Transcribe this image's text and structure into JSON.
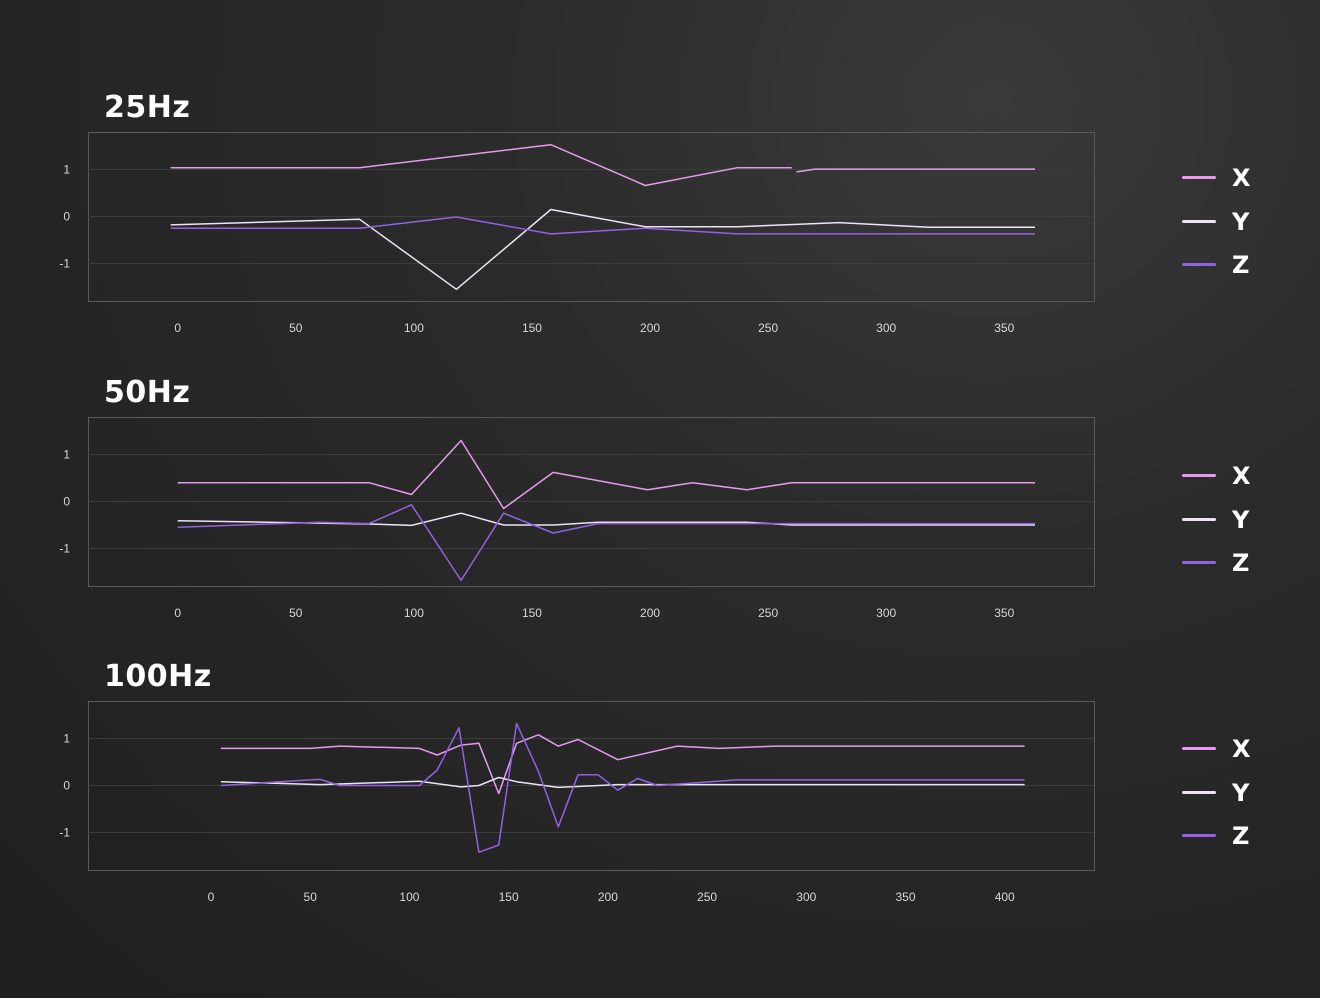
{
  "colors": {
    "X": "#e79af0",
    "Y": "#ece4f4",
    "Z": "#9461e2",
    "grid": "#3d3d3d",
    "frame": "#5a5a5a"
  },
  "legend": [
    {
      "label": "X",
      "color": "#e79af0"
    },
    {
      "label": "Y",
      "color": "#ece4f4"
    },
    {
      "label": "Z",
      "color": "#9461e2"
    }
  ],
  "chart_data": [
    {
      "type": "line",
      "title": "25Hz",
      "xlim": [
        -38,
        388
      ],
      "ylim": [
        -1.8,
        1.8
      ],
      "xticks": [
        0,
        50,
        100,
        150,
        200,
        250,
        300,
        350
      ],
      "yticks": [
        1,
        0,
        -1
      ],
      "grid": true,
      "legend_position": "right",
      "series": [
        {
          "name": "X",
          "color": "#e79af0",
          "segments": [
            [
              [
                -3,
                1.04
              ],
              [
                77,
                1.04
              ],
              [
                158,
                1.53
              ],
              [
                198,
                0.66
              ],
              [
                237,
                1.04
              ],
              [
                260,
                1.04
              ]
            ],
            [
              [
                262,
                0.95
              ],
              [
                270,
                1.01
              ],
              [
                363,
                1.01
              ]
            ]
          ]
        },
        {
          "name": "Y",
          "color": "#ece4f4",
          "segments": [
            [
              [
                -3,
                -0.18
              ],
              [
                77,
                -0.06
              ],
              [
                118,
                -1.55
              ],
              [
                158,
                0.15
              ],
              [
                198,
                -0.22
              ],
              [
                237,
                -0.22
              ],
              [
                280,
                -0.13
              ],
              [
                318,
                -0.23
              ],
              [
                363,
                -0.23
              ]
            ]
          ]
        },
        {
          "name": "Z",
          "color": "#9461e2",
          "segments": [
            [
              [
                -3,
                -0.25
              ],
              [
                77,
                -0.25
              ],
              [
                118,
                -0.01
              ],
              [
                158,
                -0.37
              ],
              [
                198,
                -0.25
              ],
              [
                237,
                -0.37
              ],
              [
                363,
                -0.37
              ]
            ]
          ]
        }
      ]
    },
    {
      "type": "line",
      "title": "50Hz",
      "xlim": [
        -38,
        388
      ],
      "ylim": [
        -1.8,
        1.8
      ],
      "xticks": [
        0,
        50,
        100,
        150,
        200,
        250,
        300,
        350
      ],
      "yticks": [
        1,
        0,
        -1
      ],
      "grid": true,
      "legend_position": "right",
      "series": [
        {
          "name": "X",
          "color": "#e79af0",
          "segments": [
            [
              [
                0,
                0.4
              ],
              [
                81,
                0.4
              ],
              [
                99,
                0.15
              ],
              [
                120,
                1.3
              ],
              [
                138,
                -0.15
              ],
              [
                159,
                0.62
              ],
              [
                199,
                0.25
              ],
              [
                218,
                0.4
              ],
              [
                241,
                0.25
              ],
              [
                260,
                0.4
              ],
              [
                363,
                0.4
              ]
            ]
          ]
        },
        {
          "name": "Y",
          "color": "#ece4f4",
          "segments": [
            [
              [
                0,
                -0.41
              ],
              [
                81,
                -0.48
              ],
              [
                99,
                -0.51
              ],
              [
                120,
                -0.25
              ],
              [
                138,
                -0.5
              ],
              [
                159,
                -0.5
              ],
              [
                178,
                -0.44
              ],
              [
                241,
                -0.44
              ],
              [
                260,
                -0.5
              ],
              [
                363,
                -0.5
              ]
            ]
          ]
        },
        {
          "name": "Z",
          "color": "#9461e2",
          "segments": [
            [
              [
                0,
                -0.55
              ],
              [
                60,
                -0.44
              ],
              [
                81,
                -0.47
              ],
              [
                99,
                -0.07
              ],
              [
                120,
                -1.68
              ],
              [
                138,
                -0.25
              ],
              [
                159,
                -0.67
              ],
              [
                178,
                -0.47
              ],
              [
                241,
                -0.47
              ],
              [
                260,
                -0.47
              ],
              [
                363,
                -0.47
              ]
            ]
          ]
        }
      ]
    },
    {
      "type": "line",
      "title": "100Hz",
      "xlim": [
        -62,
        445
      ],
      "ylim": [
        -1.8,
        1.8
      ],
      "xticks": [
        0,
        50,
        100,
        150,
        200,
        250,
        300,
        350,
        400
      ],
      "yticks": [
        1,
        0,
        -1
      ],
      "grid": true,
      "legend_position": "right",
      "series": [
        {
          "name": "X",
          "color": "#e79af0",
          "segments": [
            [
              [
                5,
                0.79
              ],
              [
                50,
                0.79
              ],
              [
                65,
                0.84
              ],
              [
                105,
                0.79
              ],
              [
                114,
                0.65
              ],
              [
                126,
                0.86
              ],
              [
                135,
                0.9
              ],
              [
                145,
                -0.17
              ],
              [
                154,
                0.9
              ],
              [
                165,
                1.08
              ],
              [
                175,
                0.84
              ],
              [
                185,
                0.98
              ],
              [
                205,
                0.55
              ],
              [
                235,
                0.84
              ],
              [
                256,
                0.79
              ],
              [
                285,
                0.84
              ],
              [
                410,
                0.84
              ]
            ]
          ]
        },
        {
          "name": "Y",
          "color": "#ece4f4",
          "segments": [
            [
              [
                5,
                0.08
              ],
              [
                55,
                0.02
              ],
              [
                105,
                0.09
              ],
              [
                126,
                -0.03
              ],
              [
                135,
                0.0
              ],
              [
                145,
                0.17
              ],
              [
                154,
                0.08
              ],
              [
                175,
                -0.04
              ],
              [
                205,
                0.02
              ],
              [
                410,
                0.02
              ]
            ]
          ]
        },
        {
          "name": "Z",
          "color": "#9461e2",
          "segments": [
            [
              [
                5,
                0.0
              ],
              [
                50,
                0.12
              ],
              [
                55,
                0.13
              ],
              [
                65,
                0.0
              ],
              [
                105,
                0.0
              ],
              [
                114,
                0.33
              ],
              [
                125,
                1.23
              ],
              [
                135,
                -1.42
              ],
              [
                145,
                -1.27
              ],
              [
                154,
                1.32
              ],
              [
                165,
                0.3
              ],
              [
                175,
                -0.88
              ],
              [
                185,
                0.23
              ],
              [
                195,
                0.23
              ],
              [
                205,
                -0.1
              ],
              [
                215,
                0.15
              ],
              [
                225,
                0.0
              ],
              [
                265,
                0.12
              ],
              [
                410,
                0.12
              ]
            ]
          ]
        }
      ]
    }
  ]
}
